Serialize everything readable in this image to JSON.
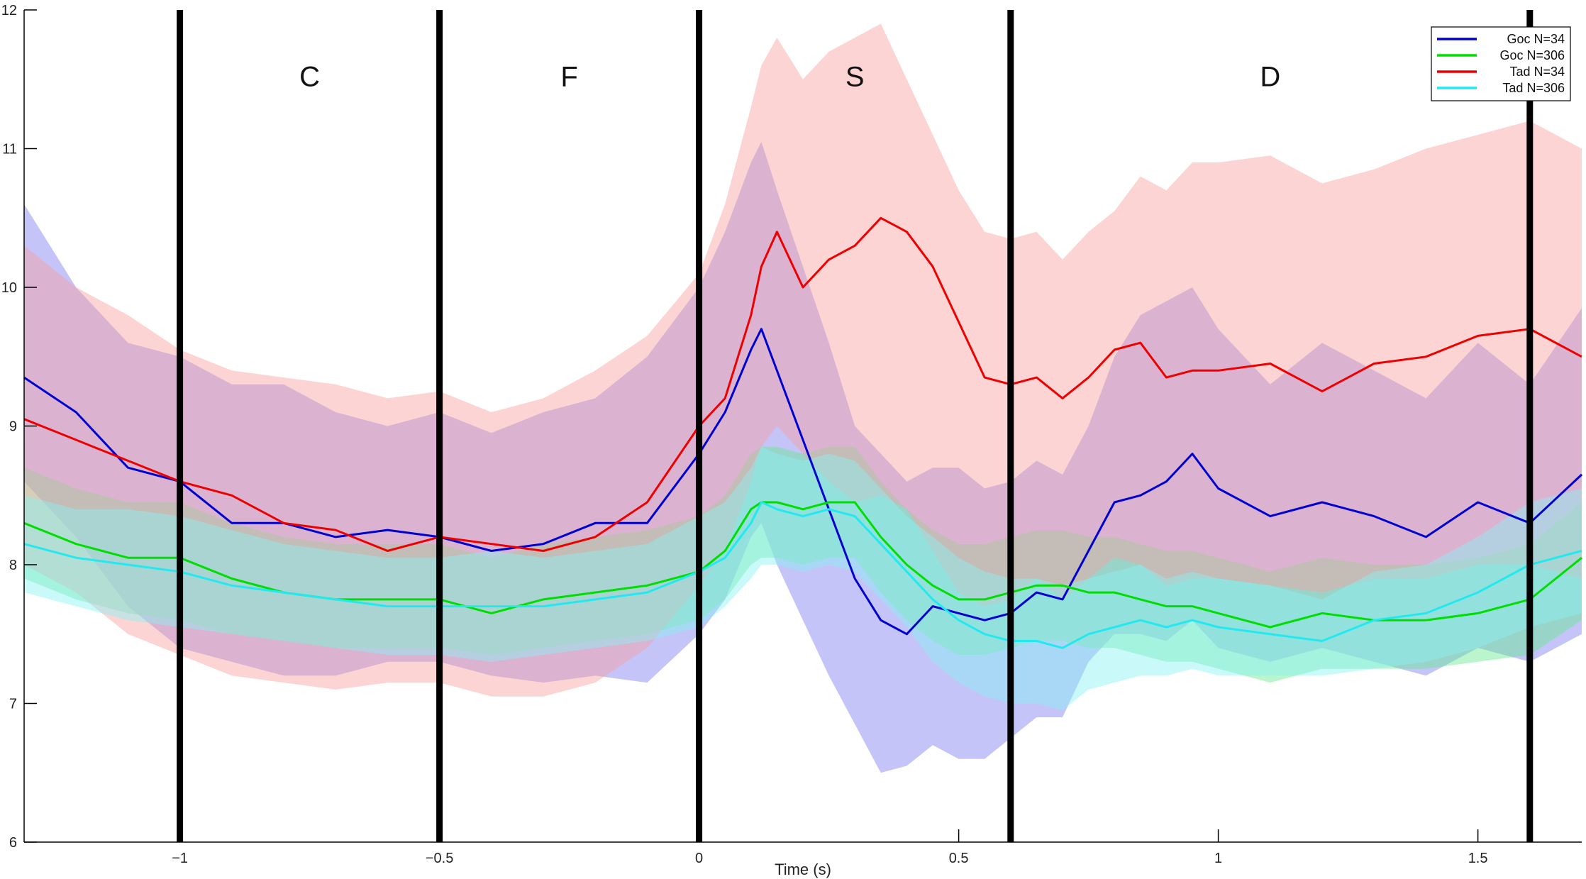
{
  "chart_data": {
    "type": "line",
    "title": "",
    "xlabel": "Time (s)",
    "ylabel": "",
    "xlim": [
      -1.3,
      1.7
    ],
    "ylim": [
      6,
      12
    ],
    "xticks": [
      -1,
      -0.5,
      0,
      0.5,
      1,
      1.5
    ],
    "xtick_labels": [
      "−1",
      "−0.5",
      "0",
      "0.5",
      "1",
      "1.5"
    ],
    "yticks": [
      6,
      7,
      8,
      9,
      10,
      11,
      12
    ],
    "ytick_labels": [
      "6",
      "7",
      "8",
      "9",
      "10",
      "11",
      "12"
    ],
    "grid": false,
    "legend_position": "top-right",
    "event_lines_x": [
      -1.0,
      -0.5,
      0.0,
      0.6,
      1.6
    ],
    "phase_labels": [
      {
        "text": "C",
        "x": -0.75,
        "y": 11.45
      },
      {
        "text": "F",
        "x": -0.25,
        "y": 11.45
      },
      {
        "text": "S",
        "x": 0.3,
        "y": 11.45
      },
      {
        "text": "D",
        "x": 1.1,
        "y": 11.45
      }
    ],
    "x": [
      -1.3,
      -1.2,
      -1.1,
      -1.0,
      -0.9,
      -0.8,
      -0.7,
      -0.6,
      -0.5,
      -0.4,
      -0.3,
      -0.2,
      -0.1,
      0.0,
      0.05,
      0.1,
      0.12,
      0.15,
      0.2,
      0.25,
      0.3,
      0.35,
      0.4,
      0.45,
      0.5,
      0.55,
      0.6,
      0.65,
      0.7,
      0.75,
      0.8,
      0.85,
      0.9,
      0.95,
      1.0,
      1.1,
      1.2,
      1.3,
      1.4,
      1.5,
      1.6,
      1.7
    ],
    "series": [
      {
        "name": "Goc N=34",
        "color": "#0000d0",
        "band_color": "#7c7cf0",
        "mean": [
          9.35,
          9.1,
          8.7,
          8.6,
          8.3,
          8.3,
          8.2,
          8.25,
          8.2,
          8.1,
          8.15,
          8.3,
          8.3,
          8.8,
          9.1,
          9.55,
          9.7,
          9.4,
          8.9,
          8.4,
          7.9,
          7.6,
          7.5,
          7.7,
          7.65,
          7.6,
          7.65,
          7.8,
          7.75,
          8.1,
          8.45,
          8.5,
          8.6,
          8.8,
          8.55,
          8.35,
          8.45,
          8.35,
          8.2,
          8.45,
          8.3,
          8.65
        ],
        "lower": [
          8.6,
          8.2,
          7.7,
          7.4,
          7.3,
          7.2,
          7.2,
          7.3,
          7.3,
          7.2,
          7.15,
          7.2,
          7.15,
          7.5,
          7.75,
          8.2,
          8.3,
          8.0,
          7.6,
          7.2,
          6.85,
          6.5,
          6.55,
          6.7,
          6.6,
          6.6,
          6.75,
          6.9,
          6.9,
          7.3,
          7.5,
          7.5,
          7.45,
          7.6,
          7.4,
          7.3,
          7.4,
          7.3,
          7.2,
          7.4,
          7.3,
          7.5
        ],
        "upper": [
          10.6,
          10.0,
          9.6,
          9.5,
          9.3,
          9.3,
          9.1,
          9.0,
          9.1,
          8.95,
          9.1,
          9.2,
          9.5,
          10.0,
          10.4,
          10.9,
          11.05,
          10.7,
          10.15,
          9.6,
          9.0,
          8.8,
          8.6,
          8.7,
          8.7,
          8.55,
          8.6,
          8.75,
          8.65,
          9.0,
          9.5,
          9.8,
          9.9,
          10.0,
          9.7,
          9.3,
          9.6,
          9.4,
          9.2,
          9.6,
          9.3,
          9.85
        ]
      },
      {
        "name": "Goc N=306",
        "color": "#00dd00",
        "band_color": "#66e890",
        "mean": [
          8.3,
          8.15,
          8.05,
          8.05,
          7.9,
          7.8,
          7.75,
          7.75,
          7.75,
          7.65,
          7.75,
          7.8,
          7.85,
          7.95,
          8.1,
          8.4,
          8.45,
          8.45,
          8.4,
          8.45,
          8.45,
          8.2,
          8.0,
          7.85,
          7.75,
          7.75,
          7.8,
          7.85,
          7.85,
          7.8,
          7.8,
          7.75,
          7.7,
          7.7,
          7.65,
          7.55,
          7.65,
          7.6,
          7.6,
          7.65,
          7.75,
          8.05
        ],
        "lower": [
          7.9,
          7.75,
          7.65,
          7.6,
          7.5,
          7.45,
          7.4,
          7.4,
          7.4,
          7.35,
          7.4,
          7.45,
          7.5,
          7.6,
          7.75,
          8.0,
          8.05,
          8.05,
          8.0,
          8.05,
          8.05,
          7.8,
          7.6,
          7.45,
          7.35,
          7.35,
          7.4,
          7.45,
          7.45,
          7.4,
          7.4,
          7.35,
          7.3,
          7.3,
          7.25,
          7.15,
          7.25,
          7.25,
          7.25,
          7.3,
          7.35,
          7.6
        ],
        "upper": [
          8.7,
          8.55,
          8.45,
          8.45,
          8.3,
          8.2,
          8.15,
          8.15,
          8.15,
          8.05,
          8.15,
          8.2,
          8.25,
          8.35,
          8.5,
          8.8,
          8.85,
          8.85,
          8.8,
          8.85,
          8.85,
          8.6,
          8.4,
          8.25,
          8.15,
          8.15,
          8.2,
          8.25,
          8.25,
          8.2,
          8.2,
          8.15,
          8.1,
          8.1,
          8.05,
          7.95,
          8.05,
          8.0,
          8.0,
          8.05,
          8.15,
          8.45
        ]
      },
      {
        "name": "Tad N=34",
        "color": "#ee0000",
        "band_color": "#f8a0a0",
        "mean": [
          9.05,
          8.9,
          8.75,
          8.6,
          8.5,
          8.3,
          8.25,
          8.1,
          8.2,
          8.15,
          8.1,
          8.2,
          8.45,
          9.0,
          9.2,
          9.8,
          10.15,
          10.4,
          10.0,
          10.2,
          10.3,
          10.5,
          10.4,
          10.15,
          9.75,
          9.35,
          9.3,
          9.35,
          9.2,
          9.35,
          9.55,
          9.6,
          9.35,
          9.4,
          9.4,
          9.45,
          9.25,
          9.45,
          9.5,
          9.65,
          9.7,
          9.5
        ],
        "lower": [
          8.0,
          7.8,
          7.5,
          7.35,
          7.2,
          7.15,
          7.1,
          7.15,
          7.15,
          7.05,
          7.05,
          7.15,
          7.4,
          7.85,
          8.1,
          8.6,
          8.85,
          9.0,
          8.8,
          8.6,
          8.45,
          8.5,
          8.4,
          8.1,
          7.8,
          7.7,
          7.75,
          7.9,
          7.75,
          7.9,
          8.05,
          8.0,
          7.85,
          7.9,
          7.9,
          7.85,
          7.8,
          7.9,
          7.9,
          8.0,
          8.0,
          7.9
        ],
        "upper": [
          10.3,
          10.0,
          9.8,
          9.55,
          9.4,
          9.35,
          9.3,
          9.2,
          9.25,
          9.1,
          9.2,
          9.4,
          9.65,
          10.1,
          10.6,
          11.3,
          11.6,
          11.8,
          11.5,
          11.7,
          11.8,
          11.9,
          11.5,
          11.1,
          10.7,
          10.4,
          10.35,
          10.4,
          10.2,
          10.4,
          10.55,
          10.8,
          10.7,
          10.9,
          10.9,
          10.95,
          10.75,
          10.85,
          11.0,
          11.1,
          11.2,
          11.0
        ]
      },
      {
        "name": "Tad N=306",
        "color": "#22e8f0",
        "band_color": "#8af2f4",
        "mean": [
          8.15,
          8.05,
          8.0,
          7.95,
          7.85,
          7.8,
          7.75,
          7.7,
          7.7,
          7.7,
          7.7,
          7.75,
          7.8,
          7.95,
          8.05,
          8.3,
          8.45,
          8.4,
          8.35,
          8.4,
          8.35,
          8.15,
          7.95,
          7.75,
          7.6,
          7.5,
          7.45,
          7.45,
          7.4,
          7.5,
          7.55,
          7.6,
          7.55,
          7.6,
          7.55,
          7.5,
          7.45,
          7.6,
          7.65,
          7.8,
          8.0,
          8.1
        ],
        "lower": [
          7.8,
          7.7,
          7.6,
          7.55,
          7.5,
          7.45,
          7.4,
          7.35,
          7.35,
          7.3,
          7.35,
          7.4,
          7.45,
          7.55,
          7.7,
          7.9,
          8.0,
          8.0,
          7.95,
          8.0,
          7.95,
          7.75,
          7.55,
          7.3,
          7.15,
          7.05,
          7.0,
          7.0,
          6.95,
          7.1,
          7.15,
          7.2,
          7.2,
          7.25,
          7.2,
          7.2,
          7.2,
          7.25,
          7.3,
          7.4,
          7.55,
          7.65
        ],
        "upper": [
          8.5,
          8.4,
          8.4,
          8.35,
          8.25,
          8.15,
          8.1,
          8.05,
          8.05,
          8.1,
          8.05,
          8.1,
          8.15,
          8.35,
          8.45,
          8.7,
          8.85,
          8.8,
          8.75,
          8.8,
          8.75,
          8.55,
          8.35,
          8.2,
          8.05,
          7.95,
          7.9,
          7.9,
          7.85,
          7.9,
          7.95,
          8.0,
          7.9,
          7.95,
          7.9,
          7.85,
          7.75,
          7.95,
          8.0,
          8.2,
          8.45,
          8.55
        ]
      }
    ]
  }
}
